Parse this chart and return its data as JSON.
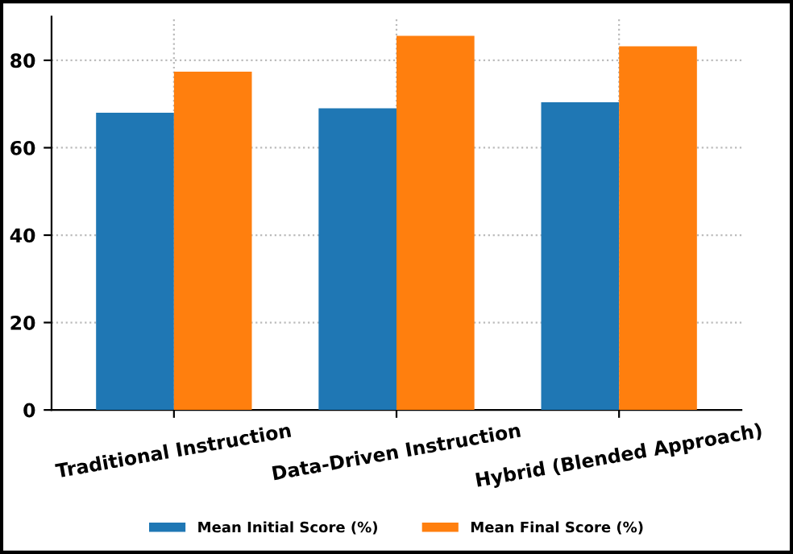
{
  "chart_data": {
    "type": "bar",
    "categories": [
      "Traditional Instruction",
      "Data-Driven Instruction",
      "Hybrid (Blended Approach)"
    ],
    "series": [
      {
        "name": "Mean Initial Score (%)",
        "color": "#1f77b4",
        "values": [
          68.0,
          69.0,
          70.4
        ]
      },
      {
        "name": "Mean Final Score (%)",
        "color": "#ff7f0e",
        "values": [
          77.4,
          85.6,
          83.2
        ]
      }
    ],
    "ylim": [
      0,
      90
    ],
    "yticks": [
      0,
      20,
      40,
      60,
      80
    ],
    "grid": true,
    "legend": "bottom"
  }
}
